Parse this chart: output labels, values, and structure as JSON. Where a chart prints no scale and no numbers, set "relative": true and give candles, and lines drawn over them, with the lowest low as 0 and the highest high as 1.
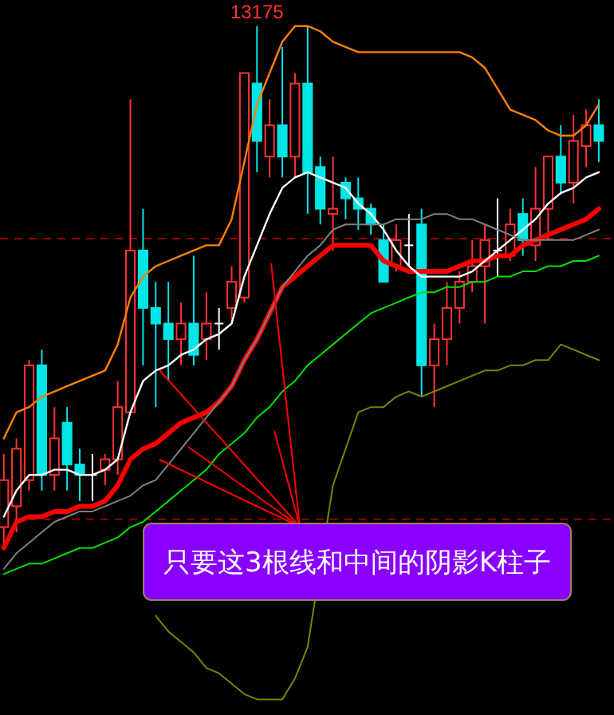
{
  "chart_data": {
    "type": "candlestick",
    "relative": true,
    "categories": [
      null,
      null,
      null,
      null,
      null,
      null,
      null,
      null,
      null,
      null,
      null,
      null,
      null,
      null,
      null,
      null,
      null,
      null,
      null,
      null,
      null,
      null,
      null,
      null,
      null,
      null,
      null,
      null,
      null,
      null,
      null,
      null,
      null,
      null,
      null,
      null,
      null,
      null,
      null,
      null,
      null,
      null,
      null,
      null,
      null,
      null,
      null,
      null
    ],
    "ohlc": [
      [
        0.04,
        0.18,
        0,
        0.13
      ],
      [
        0.08,
        0.21,
        0.03,
        0.19
      ],
      [
        0.13,
        0.36,
        0.11,
        0.35
      ],
      [
        0.35,
        0.38,
        0.11,
        0.14
      ],
      [
        0.14,
        0.27,
        0.11,
        0.21
      ],
      [
        0.24,
        0.27,
        0.11,
        0.16
      ],
      [
        0.16,
        0.19,
        0.09,
        0.14
      ],
      [
        0.14,
        0.18,
        0.09,
        0.14
      ],
      [
        0.15,
        0.18,
        0.12,
        0.17
      ],
      [
        0.17,
        0.32,
        0.14,
        0.27
      ],
      [
        0.26,
        0.86,
        0.26,
        0.57
      ],
      [
        0.57,
        0.65,
        0.35,
        0.46
      ],
      [
        0.46,
        0.51,
        0.27,
        0.43
      ],
      [
        0.43,
        0.51,
        0.32,
        0.4
      ],
      [
        0.4,
        0.47,
        0.35,
        0.43
      ],
      [
        0.43,
        0.56,
        0.35,
        0.37
      ],
      [
        0.4,
        0.49,
        0.36,
        0.43
      ],
      [
        0.43,
        0.46,
        0.38,
        0.43
      ],
      [
        0.46,
        0.54,
        0.43,
        0.51
      ],
      [
        0.48,
        0.91,
        0.47,
        0.91
      ],
      [
        0.89,
        1,
        0.72,
        0.78
      ],
      [
        0.75,
        0.86,
        0.71,
        0.81
      ],
      [
        0.81,
        0.96,
        0.71,
        0.75
      ],
      [
        0.75,
        0.91,
        0.71,
        0.89
      ],
      [
        0.89,
        1,
        0.64,
        0.72
      ],
      [
        0.73,
        0.75,
        0.62,
        0.65
      ],
      [
        0.64,
        0.75,
        0.57,
        0.65
      ],
      [
        0.7,
        0.71,
        0.63,
        0.67
      ],
      [
        0.67,
        0.71,
        0.61,
        0.65
      ],
      [
        0.65,
        0.66,
        0.6,
        0.62
      ],
      [
        0.59,
        0.62,
        0.51,
        0.51
      ],
      [
        0.54,
        0.62,
        0.53,
        0.59
      ],
      [
        0.58,
        0.64,
        0.54,
        0.58
      ],
      [
        0.62,
        0.65,
        0.29,
        0.35
      ],
      [
        0.35,
        0.43,
        0.27,
        0.4
      ],
      [
        0.4,
        0.51,
        0.35,
        0.46
      ],
      [
        0.46,
        0.53,
        0.43,
        0.51
      ],
      [
        0.51,
        0.59,
        0.49,
        0.54
      ],
      [
        0.54,
        0.62,
        0.43,
        0.59
      ],
      [
        0.57,
        0.67,
        0.52,
        0.57
      ],
      [
        0.56,
        0.65,
        0.55,
        0.62
      ],
      [
        0.64,
        0.67,
        0.56,
        0.59
      ],
      [
        0.58,
        0.73,
        0.55,
        0.65
      ],
      [
        0.65,
        0.75,
        0.59,
        0.75
      ],
      [
        0.75,
        0.81,
        0.68,
        0.7
      ],
      [
        0.7,
        0.83,
        0.66,
        0.78
      ],
      [
        0.77,
        0.84,
        0.73,
        0.81
      ],
      [
        0.81,
        0.86,
        0.74,
        0.78
      ]
    ],
    "colors": [
      "#ff3232",
      "#ff3232",
      "#ff3232",
      "#00e5e5",
      "#ff3232",
      "#00e5e5",
      "#00e5e5",
      "#ffffff",
      "#ff3232",
      "#ff3232",
      "#ff3232",
      "#00e5e5",
      "#00e5e5",
      "#00e5e5",
      "#ff3232",
      "#00e5e5",
      "#ff3232",
      "#ffffff",
      "#ff3232",
      "#ff3232",
      "#00e5e5",
      "#ff3232",
      "#00e5e5",
      "#ff3232",
      "#00e5e5",
      "#00e5e5",
      "#ff3232",
      "#00e5e5",
      "#00e5e5",
      "#00e5e5",
      "#00e5e5",
      "#ff3232",
      "#ffffff",
      "#00e5e5",
      "#ff3232",
      "#ff3232",
      "#ff3232",
      "#ff3232",
      "#ff3232",
      "#ffffff",
      "#ff3232",
      "#00e5e5",
      "#ff3232",
      "#ff3232",
      "#00e5e5",
      "#ff3232",
      "#ff3232",
      "#00e5e5"
    ],
    "series": [
      {
        "type": "line",
        "color": "#ff0000",
        "values": [
          0,
          0.05,
          0.06,
          0.06,
          0.07,
          0.07,
          0.08,
          0.08,
          0.09,
          0.12,
          0.17,
          0.19,
          0.2,
          0.22,
          0.24,
          0.25,
          0.26,
          0.28,
          0.31,
          0.36,
          0.4,
          0.45,
          0.5,
          0.52,
          0.54,
          0.56,
          0.58,
          0.58,
          0.58,
          0.58,
          0.55,
          0.54,
          0.53,
          0.53,
          0.53,
          0.53,
          0.54,
          0.55,
          0.55,
          0.56,
          0.56,
          0.58,
          0.59,
          0.6,
          0.61,
          0.62,
          0.63,
          0.65
        ]
      },
      {
        "type": "line",
        "color": "#ffffff",
        "values": [
          0.06,
          0.11,
          0.14,
          0.14,
          0.15,
          0.15,
          0.14,
          0.14,
          0.15,
          0.17,
          0.26,
          0.32,
          0.34,
          0.35,
          0.37,
          0.38,
          0.4,
          0.41,
          0.43,
          0.52,
          0.58,
          0.64,
          0.69,
          0.71,
          0.72,
          0.71,
          0.7,
          0.69,
          0.66,
          0.64,
          0.61,
          0.57,
          0.54,
          0.52,
          0.52,
          0.52,
          0.52,
          0.53,
          0.55,
          0.57,
          0.59,
          0.61,
          0.63,
          0.66,
          0.68,
          0.69,
          0.71,
          0.72
        ]
      },
      {
        "type": "line",
        "color": "#ff8000",
        "values": [
          0.21,
          0.26,
          0.27,
          0.29,
          0.3,
          0.31,
          0.32,
          0.33,
          0.34,
          0.39,
          0.48,
          0.52,
          0.54,
          0.55,
          0.56,
          0.57,
          0.58,
          0.58,
          0.63,
          0.74,
          0.85,
          0.91,
          0.97,
          1,
          1,
          0.99,
          0.97,
          0.96,
          0.95,
          0.95,
          0.95,
          0.95,
          0.95,
          0.95,
          0.95,
          0.95,
          0.95,
          0.94,
          0.92,
          0.88,
          0.84,
          0.83,
          0.82,
          0.8,
          0.79,
          0.79,
          0.81,
          0.85
        ]
      },
      {
        "type": "line",
        "color": "#808080",
        "values": [
          -0.04,
          -0.01,
          0.01,
          0.03,
          0.05,
          0.06,
          0.07,
          0.07,
          0.08,
          0.09,
          0.1,
          0.12,
          0.13,
          0.16,
          0.19,
          0.22,
          0.25,
          0.28,
          0.31,
          0.36,
          0.4,
          0.45,
          0.5,
          0.53,
          0.56,
          0.58,
          0.61,
          0.62,
          0.62,
          0.62,
          0.62,
          0.63,
          0.63,
          0.63,
          0.64,
          0.64,
          0.63,
          0.63,
          0.62,
          0.61,
          0.6,
          0.59,
          0.59,
          0.59,
          0.59,
          0.59,
          0.6,
          0.61
        ]
      },
      {
        "type": "line",
        "color": "#00e000",
        "values": [
          -0.05,
          -0.04,
          -0.03,
          -0.03,
          -0.02,
          -0.01,
          0,
          0,
          0.01,
          0.02,
          0.04,
          0.05,
          0.07,
          0.09,
          0.11,
          0.13,
          0.15,
          0.18,
          0.2,
          0.22,
          0.25,
          0.27,
          0.3,
          0.32,
          0.35,
          0.37,
          0.39,
          0.41,
          0.43,
          0.45,
          0.46,
          0.47,
          0.48,
          0.49,
          0.49,
          0.5,
          0.5,
          0.51,
          0.51,
          0.52,
          0.52,
          0.53,
          0.53,
          0.54,
          0.54,
          0.55,
          0.55,
          0.56
        ]
      },
      {
        "type": "line",
        "color": "#808000",
        "values": [
          null,
          null,
          null,
          null,
          null,
          null,
          null,
          null,
          null,
          null,
          null,
          null,
          -0.13,
          -0.16,
          -0.18,
          -0.2,
          -0.23,
          -0.24,
          -0.26,
          -0.28,
          -0.29,
          -0.29,
          -0.29,
          -0.25,
          -0.19,
          null,
          0.12,
          0.19,
          0.26,
          0.27,
          0.27,
          0.29,
          0.3,
          0.29,
          0.3,
          0.31,
          0.32,
          0.33,
          0.34,
          0.34,
          0.35,
          0.35,
          0.36,
          0.36,
          0.39,
          0.38,
          0.37,
          0.36
        ]
      }
    ],
    "ref_lines": [
      {
        "axis": "y",
        "value": 0.593,
        "color": "#990000",
        "line_style": "dashed"
      },
      {
        "axis": "y",
        "value": 0.055,
        "color": "#990000",
        "line_style": "dashed"
      }
    ],
    "annotations": [
      {
        "text": "13175",
        "y": 1
      },
      "只要这3根线和中间的阴影K柱子"
    ]
  }
}
